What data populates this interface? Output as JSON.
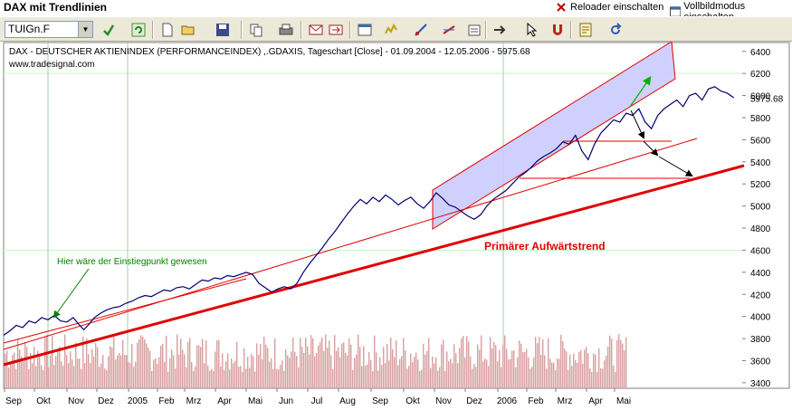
{
  "window": {
    "title": "DAX mit Trendlinien",
    "reload_label": "Reloader einschalten",
    "fullscreen_label": "Vollbildmodus einschalten"
  },
  "toolbar": {
    "symbol_value": "TUIGn.F"
  },
  "chart": {
    "title": "DAX  - DEUTSCHER AKTIENINDEX (PERFORMANCEINDEX) ,.GDAXIS, Tageschart [Close] - 01.09.2004 - 12.05.2006 - 5975.68",
    "source": "www.tradesignal.com",
    "last_value_label": "5975.68",
    "annotation_entry": "Hier wäre der Einstiegpunkt gewesen",
    "annotation_trend": "Primärer Aufwärtstrend"
  },
  "chart_data": {
    "type": "line",
    "title": "DAX  - DEUTSCHER AKTIENINDEX (PERFORMANCEINDEX) ,.GDAXIS, Tageschart [Close] - 01.09.2004 - 12.05.2006 - 5975.68",
    "x_ticks": [
      "Sep",
      "Okt",
      "Nov",
      "Dez",
      "2005",
      "Feb",
      "Mrz",
      "Apr",
      "Mai",
      "Jun",
      "Jul",
      "Aug",
      "Sep",
      "Okt",
      "Nov",
      "Dez",
      "2006",
      "Feb",
      "Mrz",
      "Apr",
      "Mai"
    ],
    "y_ticks": [
      3400,
      3600,
      3800,
      4000,
      4200,
      4400,
      4600,
      4800,
      5000,
      5200,
      5400,
      5600,
      5800,
      6000,
      6200,
      6400
    ],
    "ylim": [
      3350,
      6480
    ],
    "last_value": 5975.68,
    "series": [
      {
        "values": [
          [
            0,
            3830
          ],
          [
            3,
            3870
          ],
          [
            6,
            3920
          ],
          [
            9,
            3900
          ],
          [
            12,
            3960
          ],
          [
            15,
            3940
          ],
          [
            18,
            3990
          ],
          [
            21,
            3970
          ],
          [
            24,
            4010
          ],
          [
            27,
            3960
          ],
          [
            30,
            3950
          ],
          [
            33,
            3990
          ],
          [
            36,
            3920
          ],
          [
            38,
            3880
          ],
          [
            40,
            3920
          ],
          [
            43,
            3990
          ],
          [
            46,
            4030
          ],
          [
            49,
            4060
          ],
          [
            52,
            4080
          ],
          [
            55,
            4090
          ],
          [
            58,
            4120
          ],
          [
            61,
            4140
          ],
          [
            64,
            4170
          ],
          [
            67,
            4190
          ],
          [
            70,
            4180
          ],
          [
            73,
            4210
          ],
          [
            76,
            4240
          ],
          [
            79,
            4230
          ],
          [
            82,
            4260
          ],
          [
            85,
            4270
          ],
          [
            88,
            4250
          ],
          [
            91,
            4290
          ],
          [
            94,
            4330
          ],
          [
            97,
            4320
          ],
          [
            100,
            4350
          ],
          [
            103,
            4340
          ],
          [
            106,
            4370
          ],
          [
            109,
            4360
          ],
          [
            112,
            4380
          ],
          [
            115,
            4400
          ],
          [
            118,
            4380
          ],
          [
            121,
            4300
          ],
          [
            124,
            4260
          ],
          [
            127,
            4220
          ],
          [
            130,
            4250
          ],
          [
            133,
            4270
          ],
          [
            136,
            4250
          ],
          [
            139,
            4300
          ],
          [
            142,
            4400
          ],
          [
            145,
            4480
          ],
          [
            148,
            4550
          ],
          [
            151,
            4620
          ],
          [
            154,
            4700
          ],
          [
            157,
            4770
          ],
          [
            160,
            4850
          ],
          [
            163,
            4930
          ],
          [
            166,
            5000
          ],
          [
            169,
            5060
          ],
          [
            172,
            5020
          ],
          [
            175,
            5080
          ],
          [
            178,
            5040
          ],
          [
            181,
            5100
          ],
          [
            184,
            5060
          ],
          [
            187,
            5010
          ],
          [
            190,
            5050
          ],
          [
            193,
            5080
          ],
          [
            196,
            5020
          ],
          [
            199,
            4980
          ],
          [
            202,
            5040
          ],
          [
            205,
            5120
          ],
          [
            208,
            5070
          ],
          [
            211,
            5010
          ],
          [
            214,
            4990
          ],
          [
            217,
            4950
          ],
          [
            220,
            4910
          ],
          [
            223,
            4880
          ],
          [
            226,
            4920
          ],
          [
            229,
            5000
          ],
          [
            232,
            5060
          ],
          [
            235,
            5100
          ],
          [
            238,
            5140
          ],
          [
            241,
            5200
          ],
          [
            244,
            5260
          ],
          [
            247,
            5300
          ],
          [
            250,
            5350
          ],
          [
            253,
            5410
          ],
          [
            256,
            5450
          ],
          [
            259,
            5480
          ],
          [
            262,
            5520
          ],
          [
            265,
            5580
          ],
          [
            268,
            5560
          ],
          [
            271,
            5640
          ],
          [
            274,
            5500
          ],
          [
            277,
            5420
          ],
          [
            280,
            5560
          ],
          [
            283,
            5660
          ],
          [
            286,
            5720
          ],
          [
            289,
            5780
          ],
          [
            292,
            5760
          ],
          [
            295,
            5840
          ],
          [
            298,
            5820
          ],
          [
            301,
            5880
          ],
          [
            304,
            5760
          ],
          [
            307,
            5700
          ],
          [
            310,
            5820
          ],
          [
            313,
            5880
          ],
          [
            316,
            5920
          ],
          [
            319,
            5960
          ],
          [
            322,
            5900
          ],
          [
            325,
            6000
          ],
          [
            328,
            6020
          ],
          [
            331,
            5960
          ],
          [
            334,
            6060
          ],
          [
            337,
            6080
          ],
          [
            340,
            6040
          ],
          [
            343,
            6020
          ],
          [
            346,
            5980
          ]
        ]
      }
    ],
    "grid": true
  },
  "colors": {
    "price_line": "#00006e",
    "trend_red": "#e00000",
    "channel_fill": "#c8c8ff",
    "channel_border": "#e00000",
    "volume": "#d8a0a0",
    "annotation_green": "#008000",
    "grid": "#c0ffc0"
  }
}
